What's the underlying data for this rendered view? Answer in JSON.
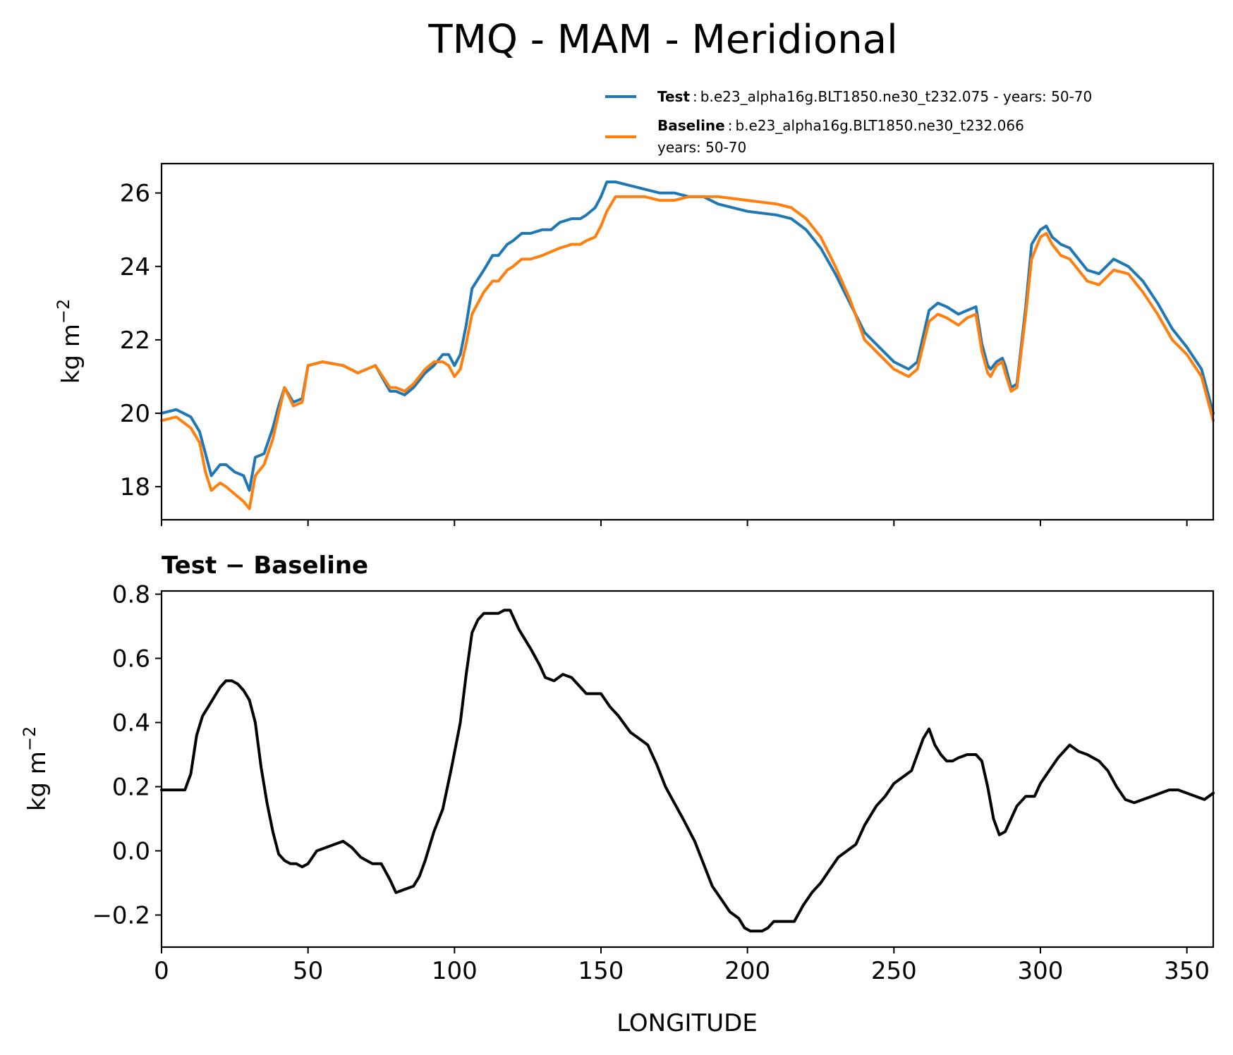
{
  "title": "TMQ - MAM - Meridional",
  "legend": {
    "test_name": "Test",
    "test_desc": "b.e23_alpha16g.BLT1850.ne30_t232.075 - years: 50-70",
    "baseline_name": "Baseline",
    "baseline_desc_line1": "b.e23_alpha16g.BLT1850.ne30_t232.066",
    "baseline_desc_line2": "years: 50-70",
    "separator": ":"
  },
  "colors": {
    "test": "#1f77b4",
    "baseline": "#ff7f0e",
    "diff": "#000000"
  },
  "chart_data": [
    {
      "type": "line",
      "panel": "top",
      "title": "TMQ - MAM - Meridional",
      "xlabel": "",
      "ylabel": "kg m",
      "ylabel_exp": "−2",
      "xlim": [
        0,
        359
      ],
      "ylim": [
        17.1,
        26.8
      ],
      "yticks": [
        18,
        20,
        22,
        24,
        26
      ],
      "ytick_labels": [
        "18",
        "20",
        "22",
        "24",
        "26"
      ],
      "xticks": [
        0,
        50,
        100,
        150,
        200,
        250,
        300,
        350
      ],
      "series": [
        {
          "name": "Test",
          "x": [
            0,
            5,
            10,
            13,
            15,
            17,
            20,
            22,
            25,
            28,
            30,
            32,
            35,
            38,
            40,
            42,
            45,
            48,
            50,
            55,
            62,
            67,
            73,
            78,
            80,
            83,
            86,
            90,
            93,
            96,
            98,
            100,
            102,
            104,
            106,
            110,
            113,
            115,
            118,
            120,
            123,
            126,
            130,
            133,
            136,
            140,
            143,
            145,
            148,
            150,
            152,
            155,
            160,
            165,
            170,
            175,
            180,
            185,
            190,
            200,
            210,
            215,
            220,
            225,
            230,
            235,
            240,
            245,
            250,
            255,
            258,
            262,
            265,
            268,
            272,
            275,
            278,
            280,
            282,
            283,
            285,
            287,
            288,
            290,
            292,
            295,
            297,
            300,
            302,
            304,
            307,
            310,
            313,
            316,
            320,
            325,
            330,
            335,
            340,
            345,
            350,
            355,
            359
          ],
          "values": [
            20.0,
            20.1,
            19.9,
            19.5,
            18.9,
            18.3,
            18.6,
            18.6,
            18.4,
            18.3,
            17.9,
            18.8,
            18.9,
            19.6,
            20.2,
            20.7,
            20.3,
            20.4,
            21.3,
            21.4,
            21.3,
            21.1,
            21.3,
            20.6,
            20.6,
            20.5,
            20.7,
            21.1,
            21.3,
            21.6,
            21.6,
            21.3,
            21.6,
            22.4,
            23.4,
            23.9,
            24.3,
            24.3,
            24.6,
            24.7,
            24.9,
            24.9,
            25.0,
            25.0,
            25.2,
            25.3,
            25.3,
            25.4,
            25.6,
            25.9,
            26.3,
            26.3,
            26.2,
            26.1,
            26.0,
            26.0,
            25.9,
            25.9,
            25.7,
            25.5,
            25.4,
            25.3,
            25.0,
            24.5,
            23.8,
            23.0,
            22.2,
            21.8,
            21.4,
            21.2,
            21.4,
            22.8,
            23.0,
            22.9,
            22.7,
            22.8,
            22.9,
            21.9,
            21.3,
            21.2,
            21.4,
            21.5,
            21.3,
            20.7,
            20.8,
            22.9,
            24.6,
            25.0,
            25.1,
            24.8,
            24.6,
            24.5,
            24.2,
            23.9,
            23.8,
            24.2,
            24.0,
            23.6,
            23.0,
            22.3,
            21.8,
            21.2,
            20.0
          ]
        },
        {
          "name": "Baseline",
          "x": [
            0,
            5,
            10,
            13,
            15,
            17,
            20,
            22,
            25,
            28,
            30,
            32,
            35,
            38,
            40,
            42,
            45,
            48,
            50,
            55,
            62,
            67,
            73,
            78,
            80,
            83,
            86,
            90,
            93,
            96,
            98,
            100,
            102,
            104,
            106,
            110,
            113,
            115,
            118,
            120,
            123,
            126,
            130,
            133,
            136,
            140,
            143,
            145,
            148,
            150,
            152,
            155,
            160,
            165,
            170,
            175,
            180,
            185,
            190,
            200,
            210,
            215,
            220,
            225,
            230,
            235,
            240,
            245,
            250,
            255,
            258,
            262,
            265,
            268,
            272,
            275,
            278,
            280,
            282,
            283,
            285,
            287,
            288,
            290,
            292,
            295,
            297,
            300,
            302,
            304,
            307,
            310,
            313,
            316,
            320,
            325,
            330,
            335,
            340,
            345,
            350,
            355,
            359
          ],
          "values": [
            19.8,
            19.9,
            19.6,
            19.2,
            18.4,
            17.9,
            18.1,
            18.0,
            17.8,
            17.6,
            17.4,
            18.3,
            18.6,
            19.3,
            20.0,
            20.7,
            20.2,
            20.3,
            21.3,
            21.4,
            21.3,
            21.1,
            21.3,
            20.7,
            20.7,
            20.6,
            20.8,
            21.2,
            21.4,
            21.4,
            21.3,
            21.0,
            21.2,
            21.9,
            22.7,
            23.3,
            23.6,
            23.6,
            23.9,
            24.0,
            24.2,
            24.2,
            24.3,
            24.4,
            24.5,
            24.6,
            24.6,
            24.7,
            24.8,
            25.1,
            25.5,
            25.9,
            25.9,
            25.9,
            25.8,
            25.8,
            25.9,
            25.9,
            25.9,
            25.8,
            25.7,
            25.6,
            25.3,
            24.8,
            24.0,
            23.1,
            22.0,
            21.6,
            21.2,
            21.0,
            21.2,
            22.5,
            22.7,
            22.6,
            22.4,
            22.6,
            22.7,
            21.7,
            21.1,
            21.0,
            21.3,
            21.4,
            21.1,
            20.6,
            20.7,
            22.7,
            24.2,
            24.8,
            24.9,
            24.6,
            24.3,
            24.2,
            23.9,
            23.6,
            23.5,
            23.9,
            23.8,
            23.3,
            22.7,
            22.0,
            21.6,
            21.0,
            19.8
          ]
        }
      ]
    },
    {
      "type": "line",
      "panel": "bottom",
      "title": "Test − Baseline",
      "xlabel": "LONGITUDE",
      "ylabel": "kg m",
      "ylabel_exp": "−2",
      "xlim": [
        0,
        359
      ],
      "ylim": [
        -0.3,
        0.81
      ],
      "yticks": [
        -0.2,
        0.0,
        0.2,
        0.4,
        0.6,
        0.8
      ],
      "ytick_labels": [
        "−0.2",
        "0.0",
        "0.2",
        "0.4",
        "0.6",
        "0.8"
      ],
      "xticks": [
        0,
        50,
        100,
        150,
        200,
        250,
        300,
        350
      ],
      "xtick_labels": [
        "0",
        "50",
        "100",
        "150",
        "200",
        "250",
        "300",
        "350"
      ],
      "series": [
        {
          "name": "Test − Baseline",
          "x": [
            0,
            3,
            6,
            8,
            10,
            12,
            14,
            16,
            18,
            20,
            22,
            24,
            26,
            28,
            30,
            32,
            34,
            36,
            38,
            40,
            42,
            44,
            46,
            48,
            50,
            53,
            56,
            59,
            62,
            65,
            68,
            72,
            75,
            78,
            80,
            83,
            86,
            88,
            90,
            93,
            96,
            99,
            102,
            104,
            106,
            108,
            110,
            113,
            115,
            117,
            119,
            122,
            126,
            129,
            131,
            134,
            137,
            140,
            143,
            145,
            147,
            150,
            153,
            156,
            160,
            163,
            166,
            169,
            172,
            175,
            178,
            182,
            185,
            188,
            191,
            194,
            197,
            199,
            201,
            203,
            205,
            207,
            209,
            211,
            213,
            216,
            219,
            222,
            225,
            228,
            231,
            234,
            237,
            240,
            244,
            247,
            250,
            253,
            256,
            258,
            260,
            262,
            264,
            266,
            268,
            270,
            272,
            275,
            278,
            280,
            282,
            284,
            286,
            288,
            290,
            292,
            295,
            298,
            300,
            303,
            306,
            308,
            310,
            313,
            316,
            320,
            323,
            326,
            329,
            332,
            335,
            338,
            341,
            344,
            347,
            350,
            353,
            356,
            359
          ],
          "values": [
            0.19,
            0.19,
            0.19,
            0.19,
            0.24,
            0.36,
            0.42,
            0.45,
            0.48,
            0.51,
            0.53,
            0.53,
            0.52,
            0.5,
            0.47,
            0.4,
            0.26,
            0.15,
            0.06,
            -0.01,
            -0.03,
            -0.04,
            -0.04,
            -0.05,
            -0.04,
            0.0,
            0.01,
            0.02,
            0.03,
            0.01,
            -0.02,
            -0.04,
            -0.04,
            -0.09,
            -0.13,
            -0.12,
            -0.11,
            -0.08,
            -0.03,
            0.06,
            0.13,
            0.26,
            0.4,
            0.55,
            0.68,
            0.72,
            0.74,
            0.74,
            0.74,
            0.75,
            0.75,
            0.69,
            0.63,
            0.58,
            0.54,
            0.53,
            0.55,
            0.54,
            0.51,
            0.49,
            0.49,
            0.49,
            0.45,
            0.42,
            0.37,
            0.35,
            0.33,
            0.27,
            0.2,
            0.15,
            0.1,
            0.03,
            -0.04,
            -0.11,
            -0.15,
            -0.19,
            -0.21,
            -0.24,
            -0.25,
            -0.25,
            -0.25,
            -0.24,
            -0.22,
            -0.22,
            -0.22,
            -0.22,
            -0.17,
            -0.13,
            -0.1,
            -0.06,
            -0.02,
            0.0,
            0.02,
            0.08,
            0.14,
            0.17,
            0.21,
            0.23,
            0.25,
            0.3,
            0.35,
            0.38,
            0.33,
            0.3,
            0.28,
            0.28,
            0.29,
            0.3,
            0.3,
            0.28,
            0.2,
            0.1,
            0.05,
            0.06,
            0.1,
            0.14,
            0.17,
            0.17,
            0.21,
            0.25,
            0.29,
            0.31,
            0.33,
            0.31,
            0.3,
            0.28,
            0.25,
            0.2,
            0.16,
            0.15,
            0.16,
            0.17,
            0.18,
            0.19,
            0.19,
            0.18,
            0.17,
            0.16,
            0.18
          ]
        }
      ]
    }
  ]
}
